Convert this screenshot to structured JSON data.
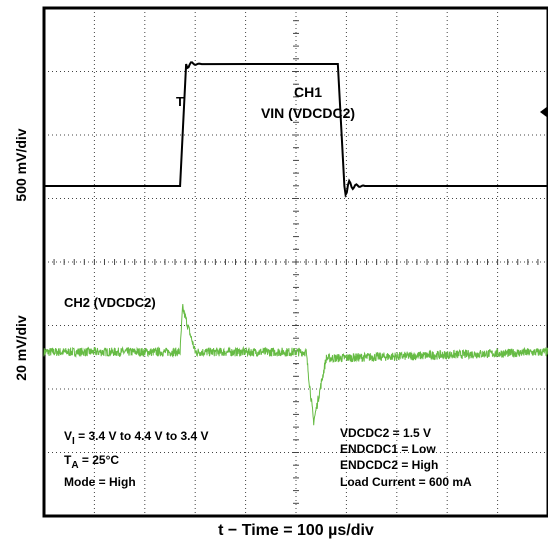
{
  "chart_data": {
    "type": "line",
    "xlabel": "t − Time = 100 µs/div",
    "x_unit": "µs",
    "x_per_div": 100,
    "x_divisions": 10,
    "grid": true,
    "channels": [
      {
        "name": "CH1 VIN (VDCDC2)",
        "label_line1": "CH1",
        "label_line2": "VIN (VDCDC2)",
        "scale_label": "500 mV/div",
        "color": "#000000",
        "points": [
          [
            0,
            3.4
          ],
          [
            270,
            3.4
          ],
          [
            280,
            4.4
          ],
          [
            290,
            4.4
          ],
          [
            580,
            4.4
          ],
          [
            590,
            3.4
          ],
          [
            600,
            3.4
          ],
          [
            1000,
            3.4
          ]
        ]
      },
      {
        "name": "CH2 (VDCDC2)",
        "label": "CH2 (VDCDC2)",
        "scale_label": "20 mV/div",
        "color": "#66bb44",
        "points": [
          [
            0,
            1.5
          ],
          [
            270,
            1.5
          ],
          [
            275,
            1.514
          ],
          [
            300,
            1.5
          ],
          [
            520,
            1.5
          ],
          [
            535,
            1.478
          ],
          [
            560,
            1.498
          ],
          [
            1000,
            1.5
          ]
        ]
      }
    ],
    "annotations_left": [
      "V",
      "I",
      " = 3.4 V to 4.4 V to 3.4 V",
      "T",
      "A",
      " = 25°C",
      "Mode = High"
    ],
    "annotations_right": [
      "VDCDC2 = 1.5 V",
      "ENDCDC1 = Low",
      "ENDCDC2 = High",
      "Load Current = 600 mA"
    ]
  }
}
